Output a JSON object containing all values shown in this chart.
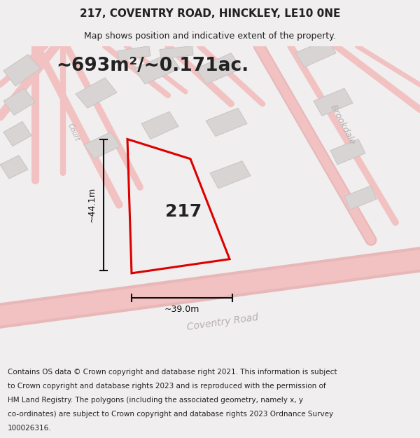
{
  "title": "217, COVENTRY ROAD, HINCKLEY, LE10 0NE",
  "subtitle": "Map shows position and indicative extent of the property.",
  "area_text": "~693m²/~0.171ac.",
  "label_217": "217",
  "dim_height": "~44.1m",
  "dim_width": "~39.0m",
  "road_label_coventry": "Coventry Road",
  "road_label_brookdale": "Brookdale",
  "road_label_court": "Court",
  "footer_lines": [
    "Contains OS data © Crown copyright and database right 2021. This information is subject",
    "to Crown copyright and database rights 2023 and is reproduced with the permission of",
    "HM Land Registry. The polygons (including the associated geometry, namely x, y",
    "co-ordinates) are subject to Crown copyright and database rights 2023 Ordnance Survey",
    "100026316."
  ],
  "bg_color": "#f0eeee",
  "map_bg": "#f4f2f2",
  "road_color": "#f2c2c2",
  "road_outline_color": "#e8b8b8",
  "building_fill": "#d8d4d4",
  "building_edge": "#c8c4c4",
  "plot_edge": "#dd0000",
  "dim_color": "#111111",
  "text_dark": "#222222",
  "road_text": "#b8b0b0",
  "white": "#ffffff",
  "title_fontsize": 11,
  "subtitle_fontsize": 9,
  "area_fontsize": 19,
  "label_fontsize": 18,
  "dim_fontsize": 9,
  "road_fontsize": 10,
  "footer_fontsize": 7.5
}
